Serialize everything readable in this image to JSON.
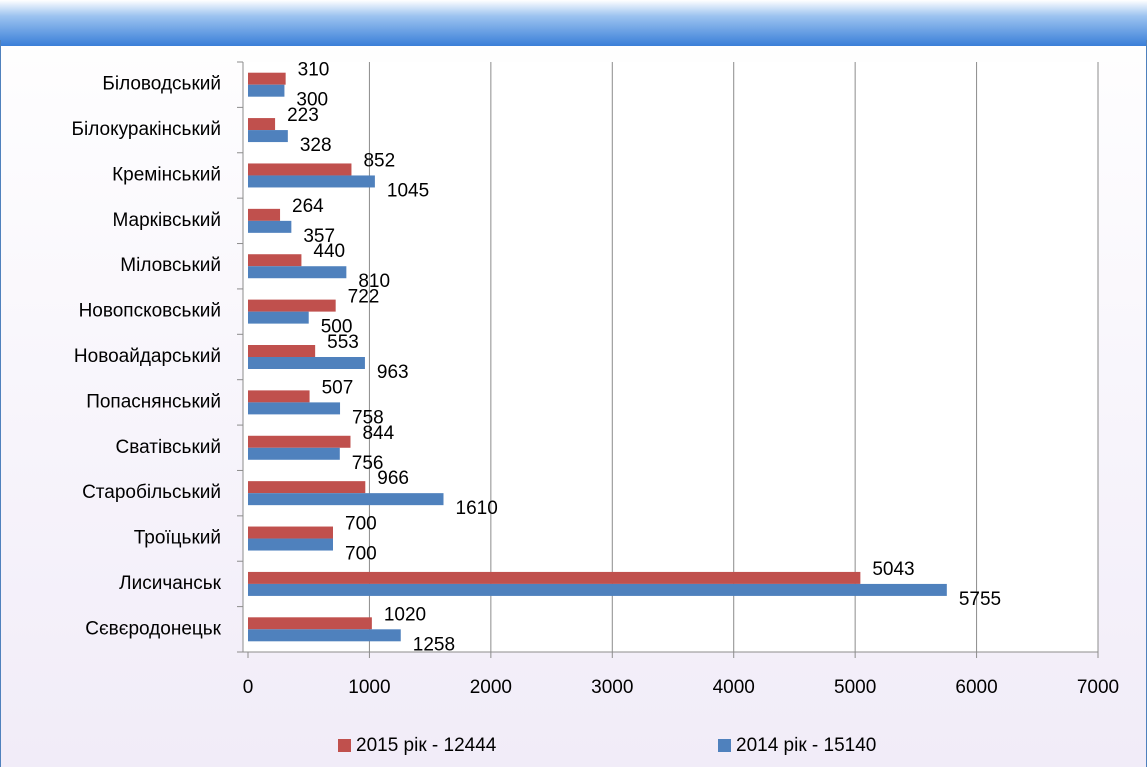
{
  "chart_data": {
    "type": "barh",
    "categories": [
      "Біловодський",
      "Білокуракінський",
      "Кремінський",
      "Марківський",
      "Міловський",
      "Новопсковський",
      "Новоайдарський",
      "Попаснянський",
      "Сватівський",
      "Старобільський",
      "Троїцький",
      "Лисичанськ",
      "Сєвєродонецьк"
    ],
    "series": [
      {
        "name": "2015 рік - 12444",
        "color": "#c0504d",
        "values": [
          310,
          223,
          852,
          264,
          440,
          722,
          553,
          507,
          844,
          966,
          700,
          5043,
          1020
        ]
      },
      {
        "name": "2014 рік - 15140",
        "color": "#4f81bd",
        "values": [
          300,
          328,
          1045,
          357,
          810,
          500,
          963,
          758,
          756,
          1610,
          700,
          5755,
          1258
        ]
      }
    ],
    "xlim": [
      0,
      7000
    ],
    "xticks": [
      0,
      1000,
      2000,
      3000,
      4000,
      5000,
      6000,
      7000
    ],
    "grid": true,
    "legend": "bottom"
  }
}
